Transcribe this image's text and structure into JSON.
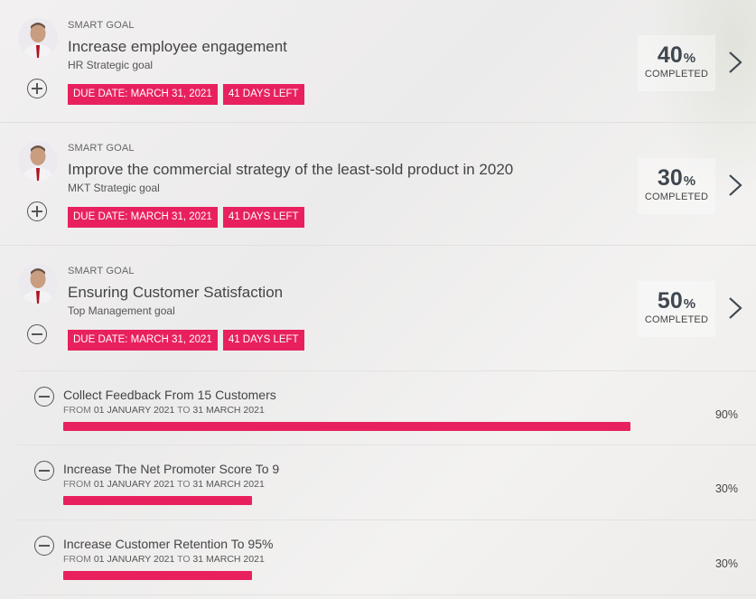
{
  "goals": [
    {
      "kicker": "SMART GOAL",
      "title": "Increase employee engagement",
      "subtitle": "HR Strategic goal",
      "due": "DUE DATE: MARCH 31, 2021",
      "days_left": "41 DAYS LEFT",
      "percent": "40",
      "percent_unit": "%",
      "completed_label": "COMPLETED",
      "expanded": false
    },
    {
      "kicker": "SMART GOAL",
      "title": "Improve the commercial strategy of the least-sold product in 2020",
      "subtitle": "MKT Strategic goal",
      "due": "DUE DATE: MARCH 31, 2021",
      "days_left": "41 DAYS LEFT",
      "percent": "30",
      "percent_unit": "%",
      "completed_label": "COMPLETED",
      "expanded": false
    },
    {
      "kicker": "SMART GOAL",
      "title": "Ensuring Customer Satisfaction",
      "subtitle": "Top Management goal",
      "due": "DUE DATE: MARCH 31, 2021",
      "days_left": "41 DAYS LEFT",
      "percent": "50",
      "percent_unit": "%",
      "completed_label": "COMPLETED",
      "expanded": true
    }
  ],
  "key_results": [
    {
      "title": "Collect Feedback From 15 Customers",
      "from_label": "FROM",
      "from_date": "01 JANUARY 2021",
      "to_label": "TO",
      "to_date": "31 MARCH 2021",
      "progress": 0.9,
      "percent_text": "90%"
    },
    {
      "title": "Increase The Net Promoter Score To 9",
      "from_label": "FROM",
      "from_date": "01 JANUARY 2021",
      "to_label": "TO",
      "to_date": "31 MARCH 2021",
      "progress": 0.3,
      "percent_text": "30%"
    },
    {
      "title": "Increase Customer Retention To 95%",
      "from_label": "FROM",
      "from_date": "01 JANUARY 2021",
      "to_label": "TO",
      "to_date": "31 MARCH 2021",
      "progress": 0.3,
      "percent_text": "30%"
    }
  ],
  "colors": {
    "accent": "#e8215e",
    "text": "#444444"
  },
  "icons": {
    "expand": "plus-circle-icon",
    "collapse": "minus-circle-icon",
    "open": "chevron-right-icon"
  }
}
